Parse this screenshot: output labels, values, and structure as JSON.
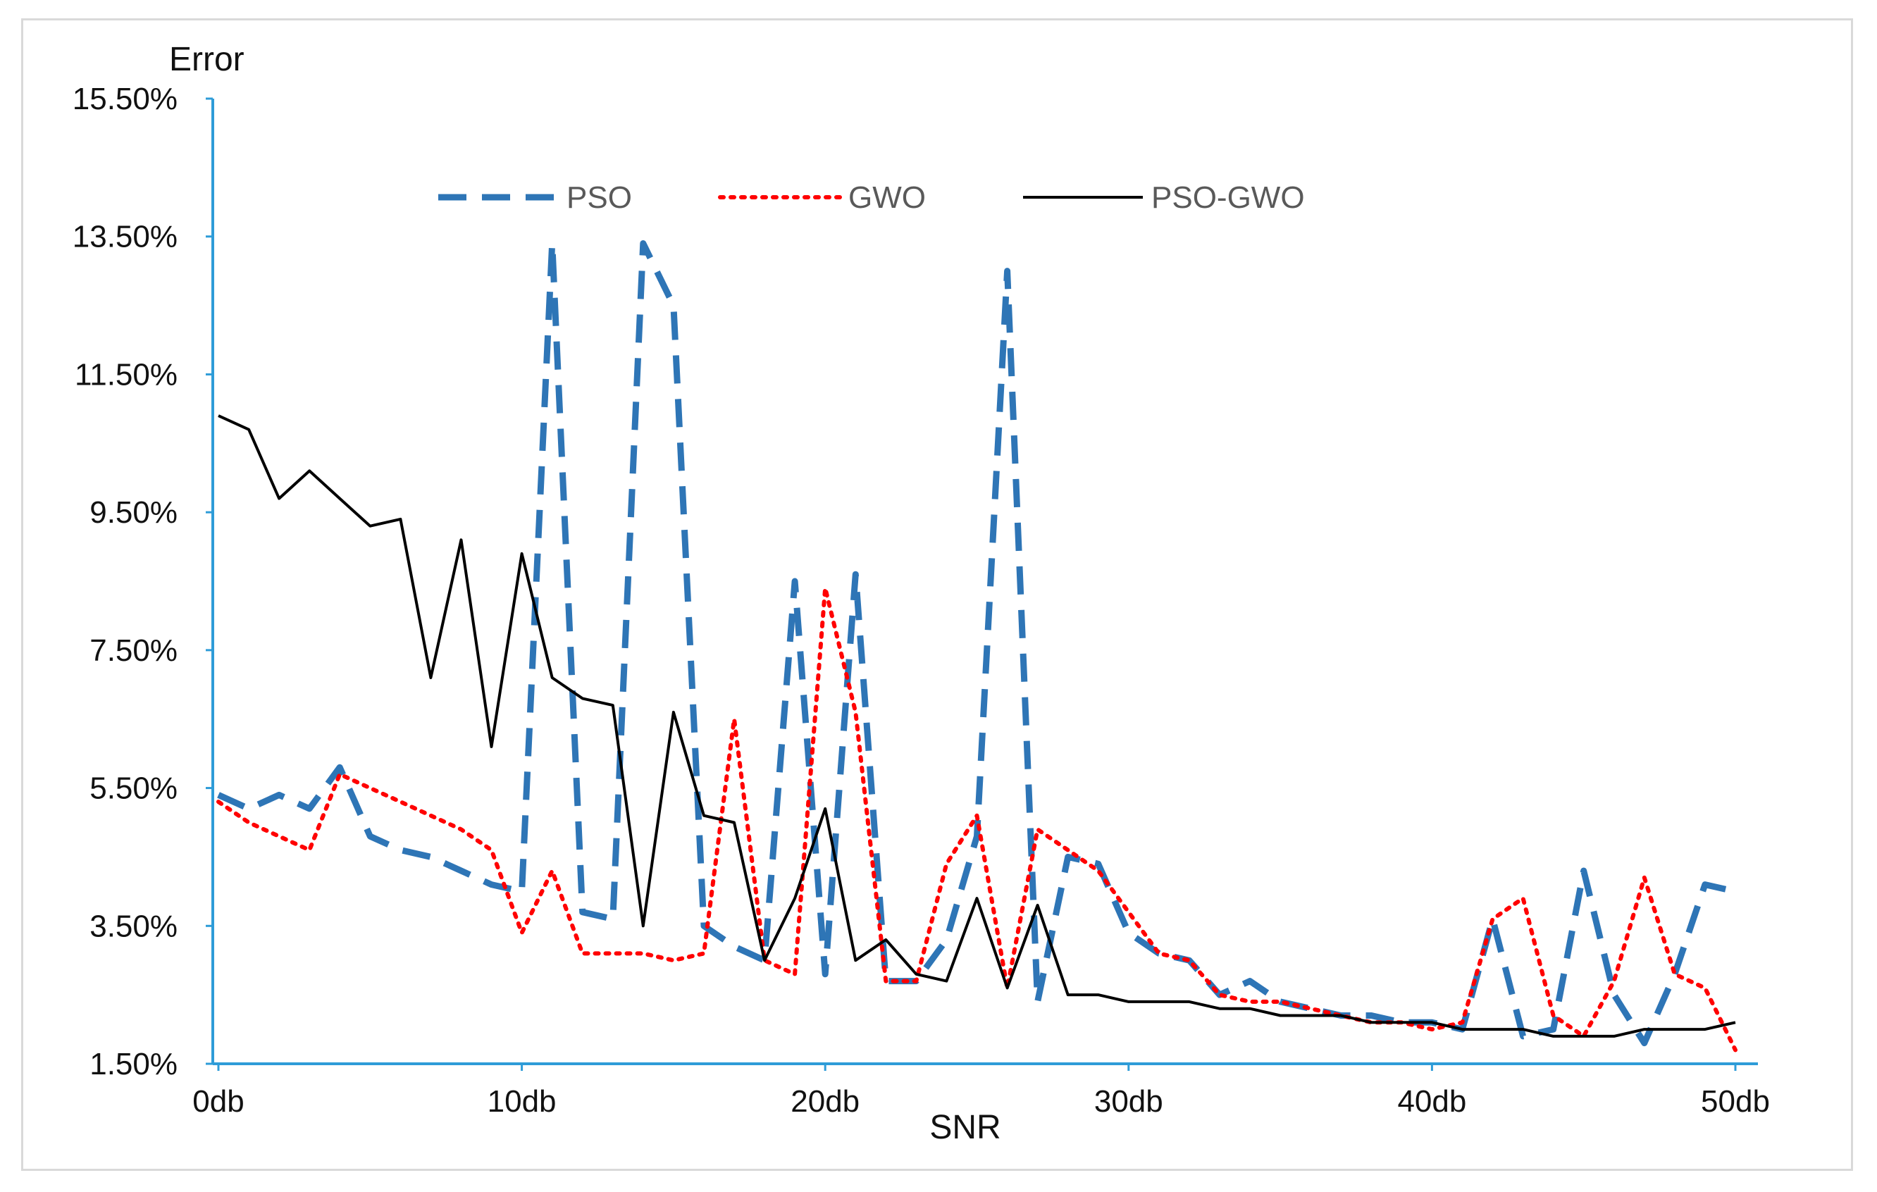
{
  "chart_data": {
    "type": "line",
    "title": "",
    "xlabel": "SNR",
    "ylabel": "Error",
    "xlim": [
      0,
      50
    ],
    "ylim": [
      0.015,
      0.155
    ],
    "x_ticks": [
      0,
      10,
      20,
      30,
      40,
      50
    ],
    "x_tick_labels": [
      "0db",
      "10db",
      "20db",
      "30db",
      "40db",
      "50db"
    ],
    "y_ticks": [
      0.015,
      0.035,
      0.055,
      0.075,
      0.095,
      0.115,
      0.135,
      0.155
    ],
    "y_tick_labels": [
      "1.50%",
      "3.50%",
      "5.50%",
      "7.50%",
      "9.50%",
      "11.50%",
      "13.50%",
      "15.50%"
    ],
    "grid": false,
    "legend_position": "top-center",
    "x": [
      0,
      1,
      2,
      3,
      4,
      5,
      6,
      7,
      8,
      9,
      10,
      11,
      12,
      13,
      14,
      15,
      16,
      17,
      18,
      19,
      20,
      21,
      22,
      23,
      24,
      25,
      26,
      27,
      28,
      29,
      30,
      31,
      32,
      33,
      34,
      35,
      36,
      37,
      38,
      39,
      40,
      41,
      42,
      43,
      44,
      45,
      46,
      47,
      48,
      49,
      50
    ],
    "series": [
      {
        "name": "PSO",
        "color": "#2e75b6",
        "style": "dashed",
        "values": [
          0.054,
          0.052,
          0.054,
          0.052,
          0.058,
          0.048,
          0.046,
          0.045,
          0.043,
          0.041,
          0.04,
          0.134,
          0.037,
          0.036,
          0.134,
          0.125,
          0.035,
          0.032,
          0.03,
          0.085,
          0.028,
          0.086,
          0.027,
          0.027,
          0.033,
          0.048,
          0.13,
          0.024,
          0.045,
          0.044,
          0.034,
          0.031,
          0.03,
          0.025,
          0.027,
          0.024,
          0.023,
          0.022,
          0.022,
          0.021,
          0.021,
          0.02,
          0.036,
          0.019,
          0.02,
          0.043,
          0.025,
          0.018,
          0.028,
          0.041,
          0.04
        ]
      },
      {
        "name": "GWO",
        "color": "#ff0000",
        "style": "dotted",
        "values": [
          0.053,
          0.05,
          0.048,
          0.046,
          0.057,
          0.055,
          0.053,
          0.051,
          0.049,
          0.046,
          0.034,
          0.043,
          0.031,
          0.031,
          0.031,
          0.03,
          0.031,
          0.065,
          0.03,
          0.028,
          0.084,
          0.066,
          0.027,
          0.027,
          0.044,
          0.051,
          0.026,
          0.049,
          0.046,
          0.043,
          0.037,
          0.031,
          0.03,
          0.025,
          0.024,
          0.024,
          0.023,
          0.022,
          0.021,
          0.021,
          0.02,
          0.021,
          0.036,
          0.039,
          0.022,
          0.019,
          0.027,
          0.042,
          0.028,
          0.026,
          0.017
        ]
      },
      {
        "name": "PSO-GWO",
        "color": "#000000",
        "style": "solid",
        "values": [
          0.109,
          0.107,
          0.097,
          0.101,
          0.097,
          0.093,
          0.094,
          0.071,
          0.091,
          0.061,
          0.089,
          0.071,
          0.068,
          0.067,
          0.035,
          0.066,
          0.051,
          0.05,
          0.03,
          0.039,
          0.052,
          0.03,
          0.033,
          0.028,
          0.027,
          0.039,
          0.026,
          0.038,
          0.025,
          0.025,
          0.024,
          0.024,
          0.024,
          0.023,
          0.023,
          0.022,
          0.022,
          0.022,
          0.021,
          0.021,
          0.021,
          0.02,
          0.02,
          0.02,
          0.019,
          0.019,
          0.019,
          0.02,
          0.02,
          0.02,
          0.021
        ]
      }
    ]
  }
}
